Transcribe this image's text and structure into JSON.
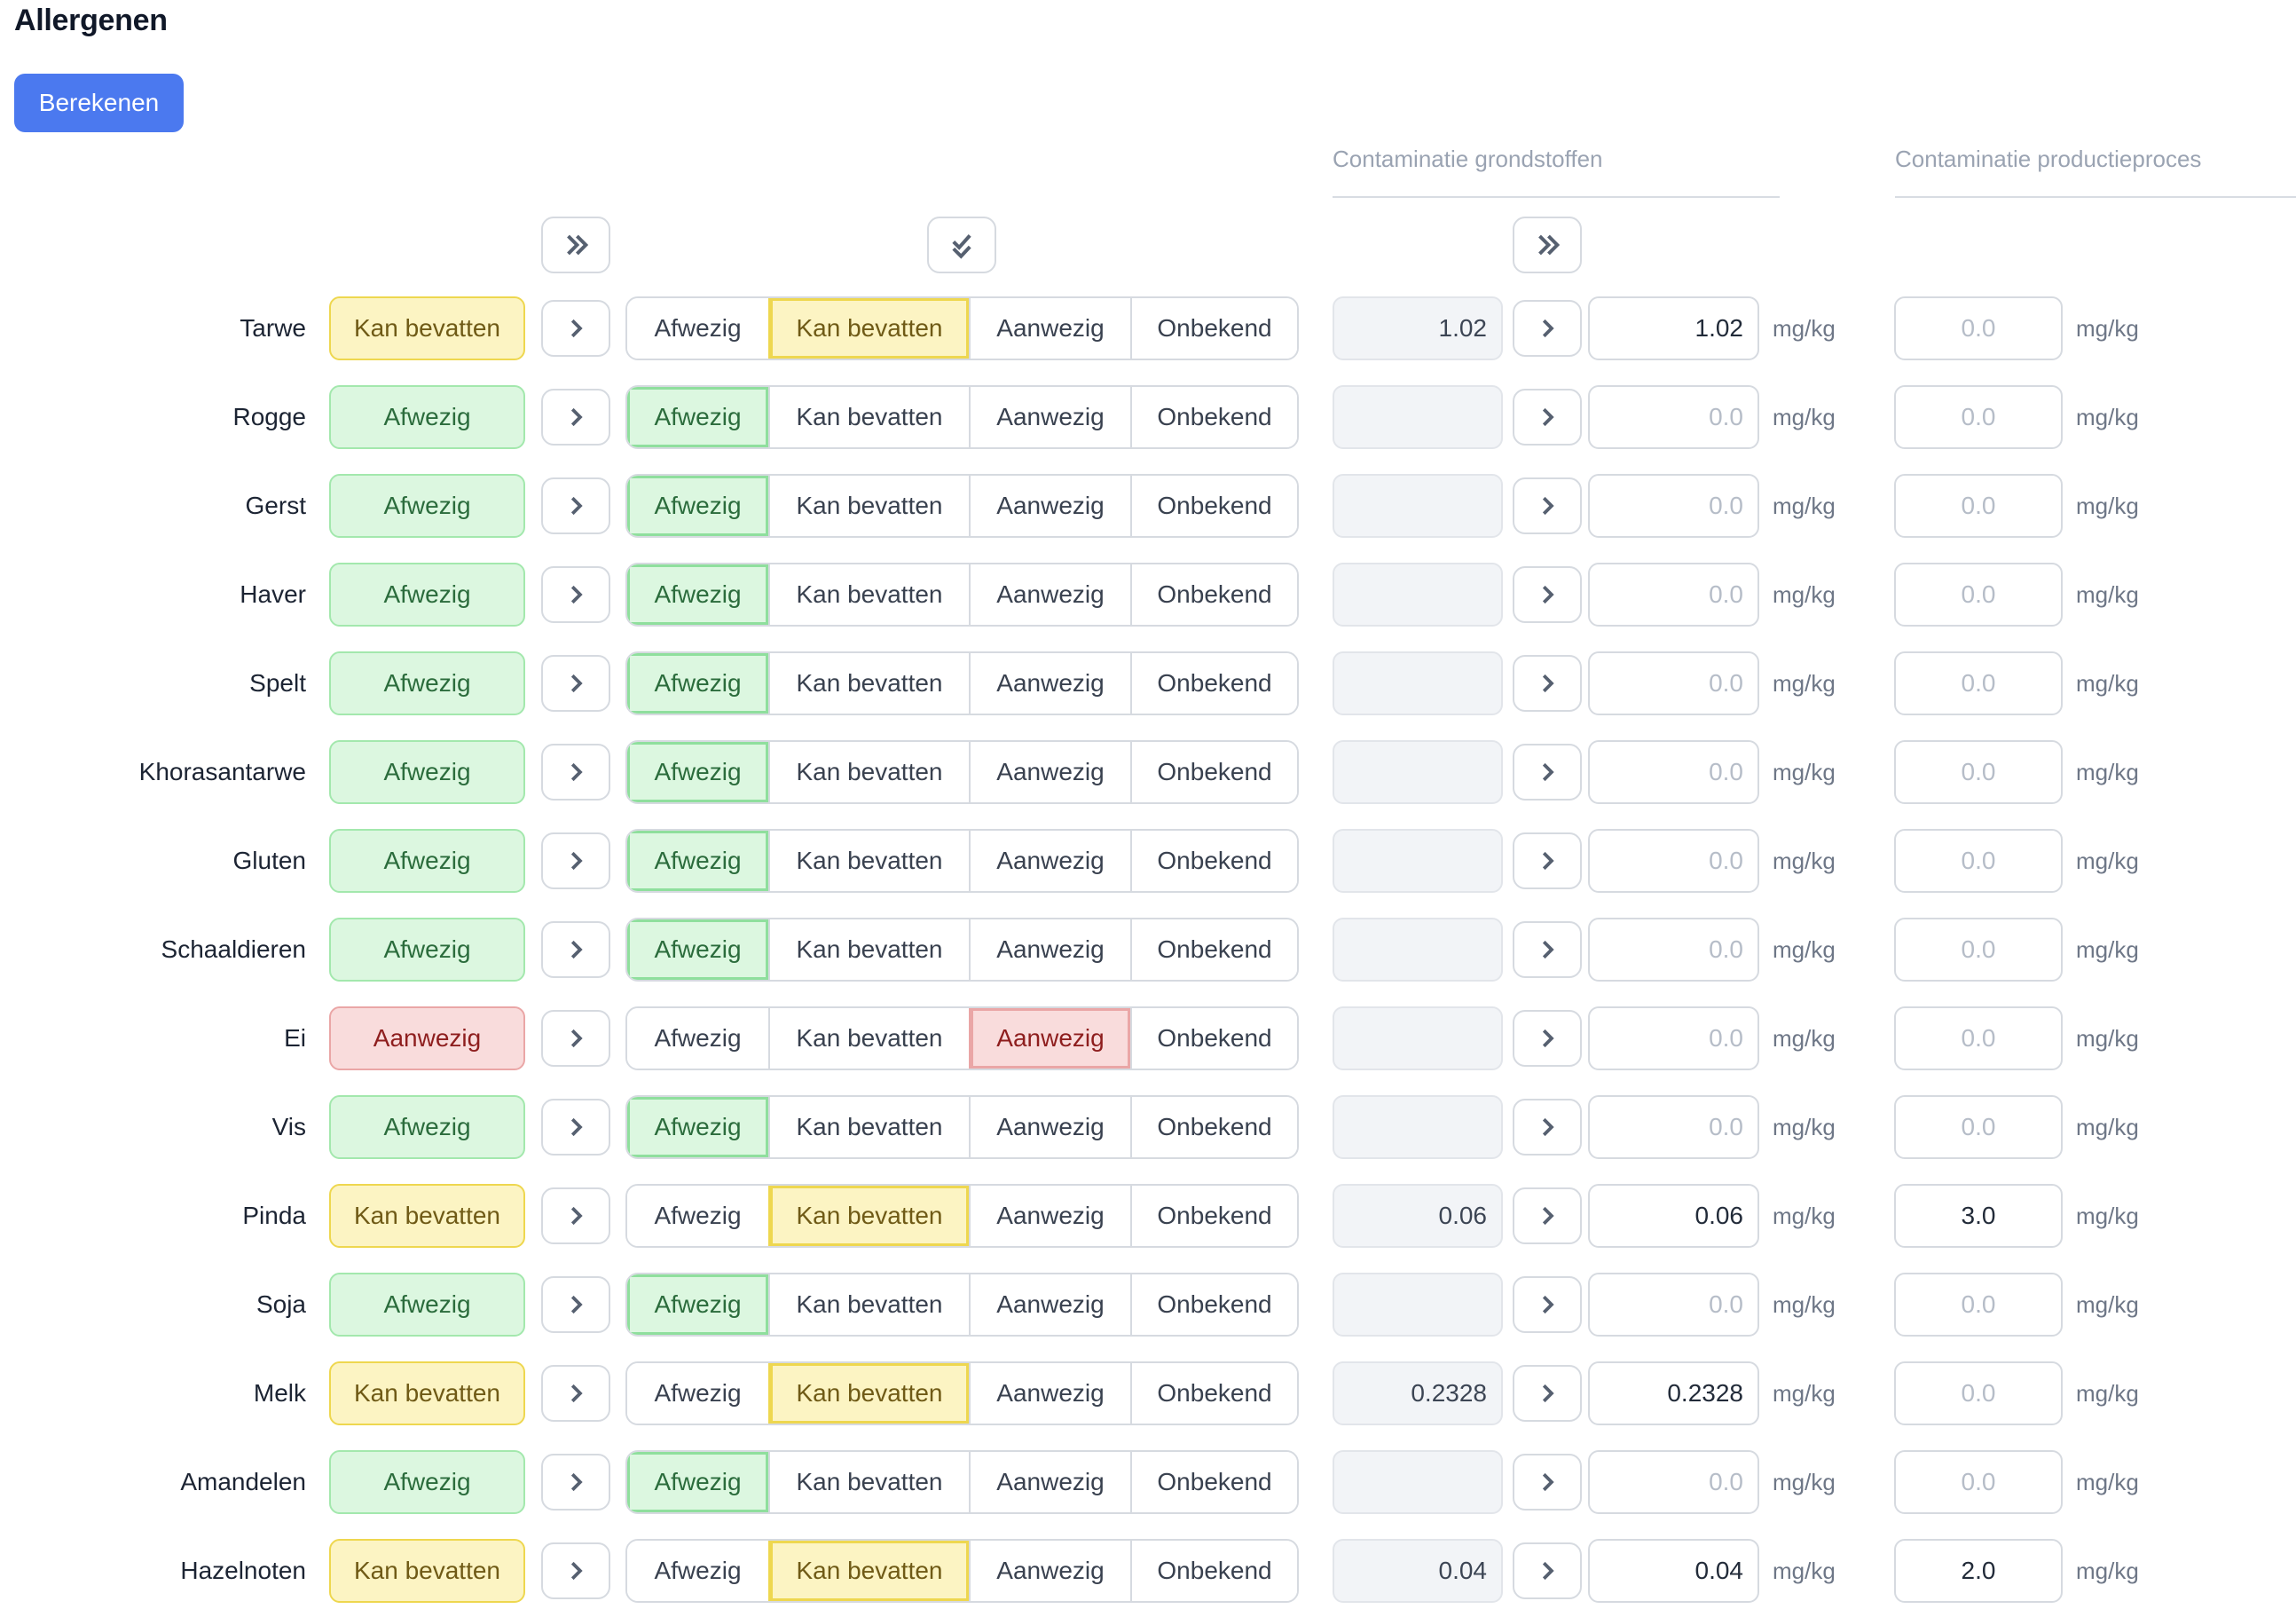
{
  "page": {
    "title": "Allergenen"
  },
  "toolbar": {
    "berekenen_label": "Berekenen"
  },
  "sections": {
    "grondstoffen": "Contaminatie grondstoffen",
    "productieproces": "Contaminatie productieproces"
  },
  "options": [
    "Afwezig",
    "Kan bevatten",
    "Aanwezig",
    "Onbekend"
  ],
  "status_labels": {
    "afwezig": "Afwezig",
    "kan_bevatten": "Kan bevatten",
    "aanwezig": "Aanwezig"
  },
  "unit": "mg/kg",
  "placeholder": "0.0",
  "icons": {
    "bulk_status_copy": "double-chevron-right-icon",
    "bulk_confirm": "double-check-icon",
    "bulk_contamination_copy": "double-chevron-right-icon",
    "row_copy": "chevron-right-icon"
  },
  "colors": {
    "primary_button": "#4b79ef",
    "badge_afwezig_bg": "#dcf7e0",
    "badge_afwezig_border": "#a3e8ad",
    "badge_afwezig_text": "#2b6c3c",
    "badge_kan_bevatten_bg": "#fcf4c3",
    "badge_kan_bevatten_border": "#eed74f",
    "badge_kan_bevatten_text": "#6f5a16",
    "badge_aanwezig_bg": "#f9dcdc",
    "badge_aanwezig_border": "#eaa6a6",
    "badge_aanwezig_text": "#8e1e1e",
    "control_border": "#d6dae0",
    "section_header_text": "#9aa3b2"
  },
  "rows": [
    {
      "name": "Tarwe",
      "status": "kan_bevatten",
      "grondstof_raw": "1.02",
      "grondstof_value": "1.02",
      "productieproces_value": ""
    },
    {
      "name": "Rogge",
      "status": "afwezig",
      "grondstof_raw": "",
      "grondstof_value": "",
      "productieproces_value": ""
    },
    {
      "name": "Gerst",
      "status": "afwezig",
      "grondstof_raw": "",
      "grondstof_value": "",
      "productieproces_value": ""
    },
    {
      "name": "Haver",
      "status": "afwezig",
      "grondstof_raw": "",
      "grondstof_value": "",
      "productieproces_value": ""
    },
    {
      "name": "Spelt",
      "status": "afwezig",
      "grondstof_raw": "",
      "grondstof_value": "",
      "productieproces_value": ""
    },
    {
      "name": "Khorasantarwe",
      "status": "afwezig",
      "grondstof_raw": "",
      "grondstof_value": "",
      "productieproces_value": ""
    },
    {
      "name": "Gluten",
      "status": "afwezig",
      "grondstof_raw": "",
      "grondstof_value": "",
      "productieproces_value": ""
    },
    {
      "name": "Schaaldieren",
      "status": "afwezig",
      "grondstof_raw": "",
      "grondstof_value": "",
      "productieproces_value": ""
    },
    {
      "name": "Ei",
      "status": "aanwezig",
      "grondstof_raw": "",
      "grondstof_value": "",
      "productieproces_value": ""
    },
    {
      "name": "Vis",
      "status": "afwezig",
      "grondstof_raw": "",
      "grondstof_value": "",
      "productieproces_value": ""
    },
    {
      "name": "Pinda",
      "status": "kan_bevatten",
      "grondstof_raw": "0.06",
      "grondstof_value": "0.06",
      "productieproces_value": "3.0"
    },
    {
      "name": "Soja",
      "status": "afwezig",
      "grondstof_raw": "",
      "grondstof_value": "",
      "productieproces_value": ""
    },
    {
      "name": "Melk",
      "status": "kan_bevatten",
      "grondstof_raw": "0.2328",
      "grondstof_value": "0.2328",
      "productieproces_value": ""
    },
    {
      "name": "Amandelen",
      "status": "afwezig",
      "grondstof_raw": "",
      "grondstof_value": "",
      "productieproces_value": ""
    },
    {
      "name": "Hazelnoten",
      "status": "kan_bevatten",
      "grondstof_raw": "0.04",
      "grondstof_value": "0.04",
      "productieproces_value": "2.0"
    }
  ]
}
